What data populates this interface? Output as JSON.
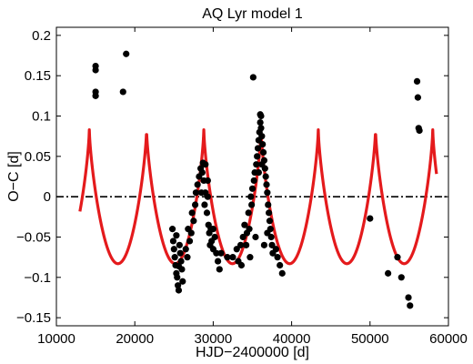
{
  "chart_data": {
    "type": "scatter",
    "title": "AQ Lyr model 1",
    "xlabel": "HJD−2400000 [d]",
    "ylabel": "O−C [d]",
    "xlim": [
      10000,
      60000
    ],
    "ylim": [
      -0.16,
      0.21
    ],
    "xticks": [
      10000,
      20000,
      30000,
      40000,
      50000,
      60000
    ],
    "xtick_labels": [
      "10000",
      "20000",
      "30000",
      "40000",
      "50000",
      "60000"
    ],
    "yticks": [
      -0.15,
      -0.1,
      -0.05,
      0,
      0.05,
      0.1,
      0.15,
      0.2
    ],
    "ytick_labels": [
      "−0.15",
      "−0.1",
      "−0.05",
      "0",
      "0.05",
      "0.1",
      "0.15",
      "0.2"
    ],
    "grid": false,
    "series": [
      {
        "kind": "scatter",
        "color": "#000000",
        "points": [
          [
            15000,
            0.162
          ],
          [
            15000,
            0.157
          ],
          [
            15000,
            0.13
          ],
          [
            15000,
            0.125
          ],
          [
            18500,
            0.13
          ],
          [
            18900,
            0.177
          ],
          [
            24800,
            -0.04
          ],
          [
            24900,
            -0.055
          ],
          [
            25000,
            -0.065
          ],
          [
            25100,
            -0.075
          ],
          [
            25200,
            -0.085
          ],
          [
            25300,
            -0.095
          ],
          [
            25400,
            -0.1
          ],
          [
            25500,
            -0.11
          ],
          [
            25600,
            -0.116
          ],
          [
            25700,
            -0.06
          ],
          [
            25800,
            -0.07
          ],
          [
            25900,
            -0.08
          ],
          [
            26000,
            -0.09
          ],
          [
            26100,
            -0.105
          ],
          [
            25300,
            -0.048
          ],
          [
            25600,
            -0.086
          ],
          [
            26500,
            -0.065
          ],
          [
            26700,
            -0.075
          ],
          [
            26800,
            -0.04
          ],
          [
            27000,
            -0.055
          ],
          [
            27200,
            -0.045
          ],
          [
            27300,
            -0.02
          ],
          [
            27500,
            -0.03
          ],
          [
            27700,
            -0.01
          ],
          [
            27800,
            0.005
          ],
          [
            28000,
            0.015
          ],
          [
            28200,
            0.025
          ],
          [
            28400,
            0.035
          ],
          [
            28500,
            0.005
          ],
          [
            28600,
            0.03
          ],
          [
            28700,
            0.042
          ],
          [
            28800,
            0.02
          ],
          [
            28900,
            -0.01
          ],
          [
            29000,
            0.005
          ],
          [
            29200,
            -0.02
          ],
          [
            29300,
            0.0
          ],
          [
            29400,
            -0.035
          ],
          [
            29500,
            -0.045
          ],
          [
            29700,
            -0.04
          ],
          [
            29800,
            -0.055
          ],
          [
            30000,
            -0.065
          ],
          [
            30200,
            -0.05
          ],
          [
            30400,
            -0.07
          ],
          [
            30600,
            -0.08
          ],
          [
            30800,
            -0.09
          ],
          [
            29000,
            0.04
          ],
          [
            29300,
            0.02
          ],
          [
            29600,
            -0.06
          ],
          [
            30000,
            -0.04
          ],
          [
            31000,
            -0.07
          ],
          [
            31800,
            -0.075
          ],
          [
            32500,
            -0.075
          ],
          [
            33000,
            -0.065
          ],
          [
            33200,
            -0.08
          ],
          [
            33500,
            -0.06
          ],
          [
            33600,
            -0.085
          ],
          [
            33800,
            -0.05
          ],
          [
            34000,
            -0.035
          ],
          [
            34200,
            -0.06
          ],
          [
            34300,
            -0.045
          ],
          [
            34500,
            -0.02
          ],
          [
            34600,
            -0.04
          ],
          [
            34700,
            -0.075
          ],
          [
            34800,
            0.0
          ],
          [
            34900,
            -0.01
          ],
          [
            35000,
            0.01
          ],
          [
            35100,
            0.148
          ],
          [
            35200,
            0.02
          ],
          [
            35300,
            0.03
          ],
          [
            35400,
            -0.05
          ],
          [
            35500,
            0.04
          ],
          [
            35600,
            0.05
          ],
          [
            35700,
            0.06
          ],
          [
            35800,
            0.07
          ],
          [
            35900,
            0.08
          ],
          [
            36000,
            0.092
          ],
          [
            36000,
            0.102
          ],
          [
            36100,
            0.1
          ],
          [
            36100,
            0.085
          ],
          [
            36200,
            0.075
          ],
          [
            36300,
            0.065
          ],
          [
            36400,
            0.055
          ],
          [
            36500,
            0.045
          ],
          [
            36600,
            0.035
          ],
          [
            36700,
            0.025
          ],
          [
            36800,
            0.015
          ],
          [
            36900,
            0.005
          ],
          [
            37000,
            -0.01
          ],
          [
            37100,
            -0.02
          ],
          [
            37200,
            -0.03
          ],
          [
            37300,
            -0.04
          ],
          [
            37400,
            -0.05
          ],
          [
            37500,
            -0.06
          ],
          [
            37600,
            -0.07
          ],
          [
            38000,
            -0.065
          ],
          [
            38200,
            -0.075
          ],
          [
            38500,
            -0.085
          ],
          [
            38800,
            -0.095
          ],
          [
            35800,
            0.03
          ],
          [
            36200,
            0.04
          ],
          [
            36500,
            -0.06
          ],
          [
            36900,
            -0.045
          ],
          [
            50000,
            -0.027
          ],
          [
            52300,
            -0.095
          ],
          [
            53500,
            -0.075
          ],
          [
            54000,
            -0.1
          ],
          [
            54900,
            -0.125
          ],
          [
            55100,
            -0.135
          ],
          [
            56000,
            0.143
          ],
          [
            56100,
            0.123
          ],
          [
            56200,
            0.085
          ],
          [
            56300,
            0.082
          ]
        ]
      },
      {
        "kind": "model-curve",
        "color": "#e41a1c",
        "x_start": 13000,
        "x_end": 58500,
        "period": 7300,
        "peak_x": 14200,
        "peak_value": 0.083,
        "min_value": -0.083
      },
      {
        "kind": "reference-line",
        "color": "#000000",
        "value": 0
      }
    ]
  }
}
